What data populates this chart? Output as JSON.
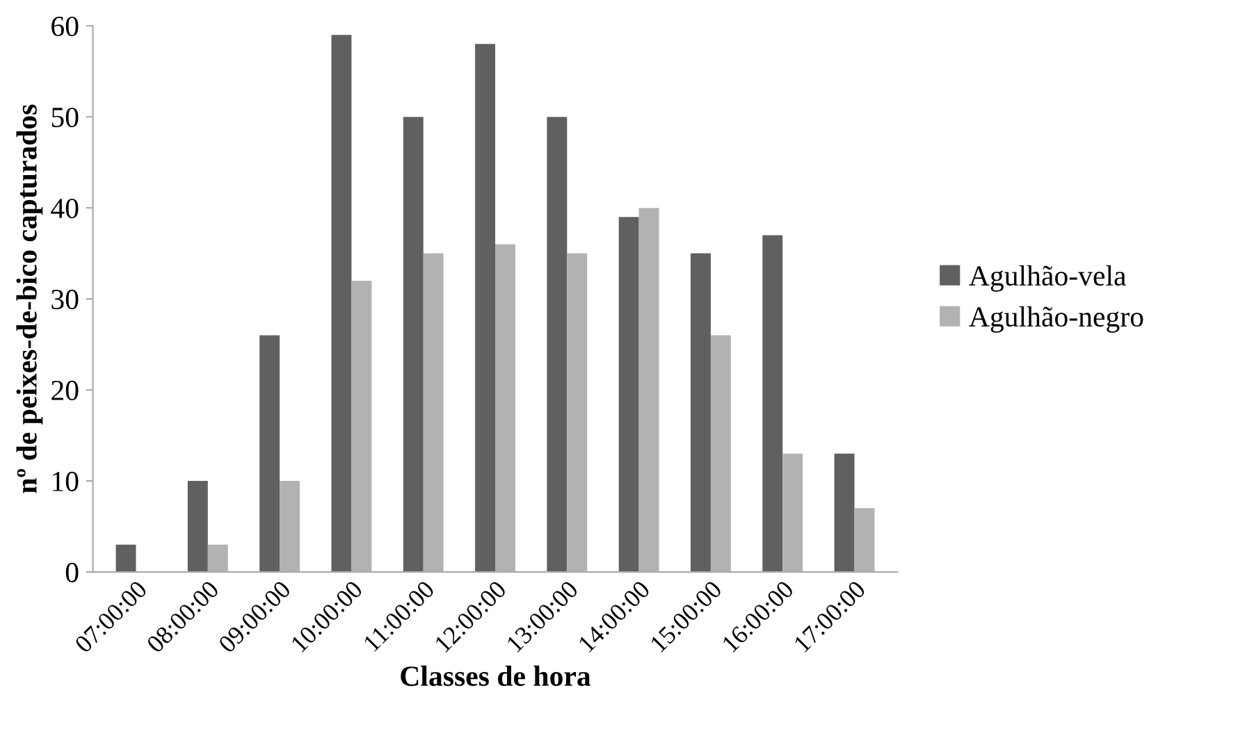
{
  "chart_data": {
    "type": "bar",
    "xlabel": "Classes de hora",
    "ylabel": "nº de peixes-de-bico capturados",
    "categories": [
      "07:00:00",
      "08:00:00",
      "09:00:00",
      "10:00:00",
      "11:00:00",
      "12:00:00",
      "13:00:00",
      "14:00:00",
      "15:00:00",
      "16:00:00",
      "17:00:00"
    ],
    "series": [
      {
        "name": "Agulhão-vela",
        "color": "#606060",
        "values": [
          3,
          10,
          26,
          59,
          50,
          58,
          50,
          39,
          35,
          37,
          13
        ]
      },
      {
        "name": "Agulhão-negro",
        "color": "#b2b2b2",
        "values": [
          0,
          3,
          10,
          32,
          35,
          36,
          35,
          40,
          26,
          13,
          7
        ]
      }
    ],
    "ylim": [
      0,
      60
    ],
    "yticks": [
      0,
      10,
      20,
      30,
      40,
      50,
      60
    ],
    "grid": false,
    "legend": "right"
  }
}
